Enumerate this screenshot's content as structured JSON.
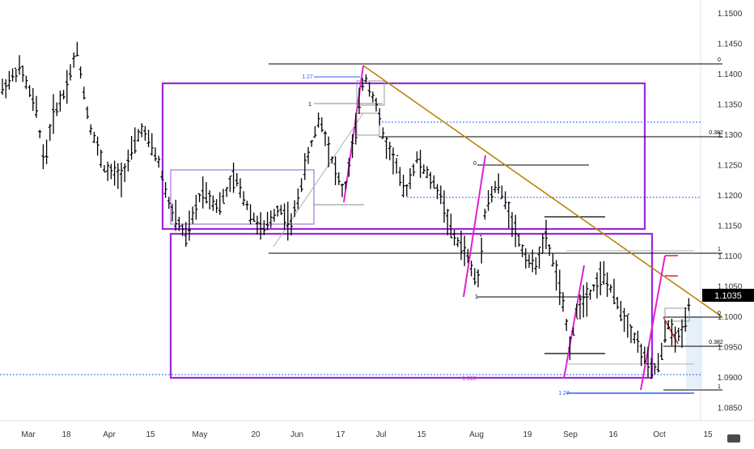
{
  "chart_data": {
    "type": "ohlc",
    "instrument_price_label": "1.1035",
    "x_ticks": [
      "Mar",
      "18",
      "Apr",
      "15",
      "May",
      "20",
      "Jun",
      "17",
      "Jul",
      "15",
      "Aug",
      "19",
      "Sep",
      "16",
      "Oct",
      "15"
    ],
    "y_ticks": [
      "1.1500",
      "1.1450",
      "1.1400",
      "1.1350",
      "1.1300",
      "1.1250",
      "1.1200",
      "1.1150",
      "1.1100",
      "1.1050",
      "1.1000",
      "1.0950",
      "1.0900",
      "1.0850"
    ],
    "ylim": [
      1.0835,
      1.1515
    ],
    "grid": false,
    "colors": {
      "bars": "#000000",
      "rectangles": "#9c27d9",
      "light_rectangle": "#b98ee8",
      "trendline": "#b8860b",
      "fib_pink": "#e020d0",
      "dotted_blue": "#2962ff",
      "price_tag_bg": "#000000"
    },
    "annotations": {
      "fib_labels": [
        "0",
        "1.27",
        "1",
        "0.382",
        "0",
        "1",
        "0",
        "1",
        "0.382",
        "1.27",
        "1",
        "0.0127",
        "1.618"
      ],
      "levels": [
        {
          "value": 1.1412,
          "label": "0"
        },
        {
          "value": 1.1318,
          "label": ""
        },
        {
          "value": 1.1295,
          "label": "0.382"
        },
        {
          "value": 1.1195,
          "label": ""
        },
        {
          "value": 1.1107,
          "label": "1"
        },
        {
          "value": 1.0905,
          "label": ""
        }
      ]
    }
  }
}
